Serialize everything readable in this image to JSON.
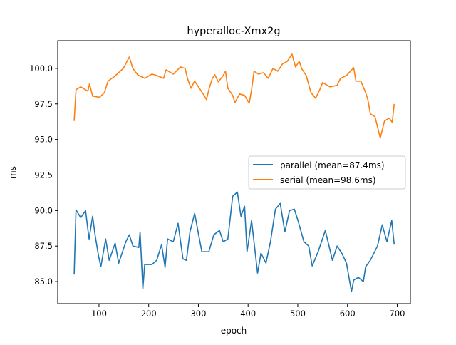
{
  "chart_data": {
    "type": "line",
    "title": "hyperalloc-Xmx2g",
    "xlabel": "epoch",
    "ylabel": "ms",
    "xlim": [
      16.9,
      726.6
    ],
    "ylim": [
      83.45,
      101.95
    ],
    "xticks": [
      100,
      200,
      300,
      400,
      500,
      600,
      700
    ],
    "yticks": [
      85.0,
      87.5,
      90.0,
      92.5,
      95.0,
      97.5,
      100.0
    ],
    "xtick_labels": [
      "100",
      "200",
      "300",
      "400",
      "500",
      "600",
      "700"
    ],
    "ytick_labels": [
      "85.0",
      "87.5",
      "90.0",
      "92.5",
      "95.0",
      "97.5",
      "100.0"
    ],
    "grid": false,
    "legend_position": "center-right",
    "series": [
      {
        "name": "parallel (mean=87.4ms)",
        "color": "#1f77b4",
        "points": [
          [
            50,
            85.5
          ],
          [
            53.7,
            90.05
          ],
          [
            63.2,
            89.5
          ],
          [
            73,
            90.0
          ],
          [
            80,
            88.0
          ],
          [
            87.1,
            89.6
          ],
          [
            92,
            88.3
          ],
          [
            99,
            86.8
          ],
          [
            103.8,
            86.05
          ],
          [
            113.4,
            88.0
          ],
          [
            120.5,
            86.5
          ],
          [
            132.5,
            87.7
          ],
          [
            139.6,
            86.3
          ],
          [
            154,
            87.8
          ],
          [
            161,
            88.3
          ],
          [
            168.3,
            87.5
          ],
          [
            180,
            87.4
          ],
          [
            182.6,
            88.5
          ],
          [
            188.3,
            84.5
          ],
          [
            192,
            86.2
          ],
          [
            206.5,
            86.2
          ],
          [
            216,
            86.5
          ],
          [
            226,
            87.6
          ],
          [
            233,
            86.0
          ],
          [
            238,
            88.0
          ],
          [
            249.5,
            87.8
          ],
          [
            259,
            89.1
          ],
          [
            269,
            86.6
          ],
          [
            276,
            86.5
          ],
          [
            283,
            88.5
          ],
          [
            292.5,
            89.8
          ],
          [
            302,
            88.0
          ],
          [
            307,
            87.1
          ],
          [
            321,
            87.1
          ],
          [
            331,
            88.3
          ],
          [
            342.5,
            88.6
          ],
          [
            350,
            87.8
          ],
          [
            359.3,
            88.0
          ],
          [
            369,
            91.0
          ],
          [
            378.4,
            91.3
          ],
          [
            385.7,
            89.6
          ],
          [
            393,
            90.3
          ],
          [
            397.8,
            87.1
          ],
          [
            407,
            89.3
          ],
          [
            419,
            85.6
          ],
          [
            426,
            87.0
          ],
          [
            436,
            86.3
          ],
          [
            445,
            87.8
          ],
          [
            455,
            90.1
          ],
          [
            464.6,
            90.5
          ],
          [
            474,
            88.5
          ],
          [
            483.5,
            90.0
          ],
          [
            493,
            90.1
          ],
          [
            500.4,
            89.3
          ],
          [
            512.4,
            87.8
          ],
          [
            522,
            87.5
          ],
          [
            529,
            86.1
          ],
          [
            541,
            87.1
          ],
          [
            555.4,
            88.6
          ],
          [
            569.7,
            86.5
          ],
          [
            579,
            87.5
          ],
          [
            588.5,
            87.0
          ],
          [
            598,
            86.3
          ],
          [
            608,
            84.3
          ],
          [
            612.5,
            85.1
          ],
          [
            622,
            85.3
          ],
          [
            632,
            85.0
          ],
          [
            636.5,
            86.05
          ],
          [
            646,
            86.5
          ],
          [
            660.4,
            87.5
          ],
          [
            670,
            89.0
          ],
          [
            679.5,
            87.8
          ],
          [
            689,
            89.3
          ],
          [
            694,
            87.6
          ]
        ]
      },
      {
        "name": "serial (mean=98.6ms)",
        "color": "#ff7f0e",
        "points": [
          [
            50,
            96.3
          ],
          [
            53.7,
            98.5
          ],
          [
            63.2,
            98.7
          ],
          [
            77.6,
            98.4
          ],
          [
            80.8,
            98.9
          ],
          [
            87.1,
            98.05
          ],
          [
            101.4,
            97.97
          ],
          [
            111,
            98.3
          ],
          [
            118,
            99.1
          ],
          [
            130,
            99.4
          ],
          [
            139.6,
            99.7
          ],
          [
            149,
            100.0
          ],
          [
            161,
            100.8
          ],
          [
            168,
            100.0
          ],
          [
            177.8,
            99.55
          ],
          [
            192,
            99.3
          ],
          [
            206.5,
            99.6
          ],
          [
            216,
            99.5
          ],
          [
            230,
            99.3
          ],
          [
            235,
            99.9
          ],
          [
            249.5,
            99.6
          ],
          [
            263.8,
            100.1
          ],
          [
            273.4,
            100.0
          ],
          [
            278,
            99.3
          ],
          [
            285,
            98.6
          ],
          [
            292.5,
            99.1
          ],
          [
            302,
            98.6
          ],
          [
            311.5,
            98.1
          ],
          [
            316.3,
            97.8
          ],
          [
            321,
            98.5
          ],
          [
            328,
            99.3
          ],
          [
            333,
            99.55
          ],
          [
            340,
            99.05
          ],
          [
            350,
            99.5
          ],
          [
            354.5,
            99.8
          ],
          [
            359.3,
            98.6
          ],
          [
            369,
            98.1
          ],
          [
            373.6,
            97.6
          ],
          [
            383,
            98.2
          ],
          [
            393,
            98.1
          ],
          [
            402.3,
            97.55
          ],
          [
            407,
            98.5
          ],
          [
            412,
            99.8
          ],
          [
            421,
            99.6
          ],
          [
            431,
            99.7
          ],
          [
            440.5,
            99.3
          ],
          [
            450,
            100.0
          ],
          [
            459.6,
            99.8
          ],
          [
            469,
            100.3
          ],
          [
            479,
            100.5
          ],
          [
            488.3,
            101.0
          ],
          [
            495.5,
            100.1
          ],
          [
            503,
            100.5
          ],
          [
            507.5,
            100.0
          ],
          [
            517,
            99.5
          ],
          [
            526.5,
            98.3
          ],
          [
            536,
            97.9
          ],
          [
            545.5,
            98.6
          ],
          [
            550,
            99.0
          ],
          [
            564.6,
            98.7
          ],
          [
            579,
            98.8
          ],
          [
            586,
            99.3
          ],
          [
            598,
            99.5
          ],
          [
            612.5,
            100.05
          ],
          [
            617,
            99.1
          ],
          [
            627,
            99.1
          ],
          [
            636.5,
            98.3
          ],
          [
            641,
            97.8
          ],
          [
            646,
            96.8
          ],
          [
            655.4,
            96.6
          ],
          [
            666,
            95.1
          ],
          [
            674.5,
            96.3
          ],
          [
            684,
            96.5
          ],
          [
            690,
            96.2
          ],
          [
            694,
            97.5
          ]
        ]
      }
    ]
  }
}
